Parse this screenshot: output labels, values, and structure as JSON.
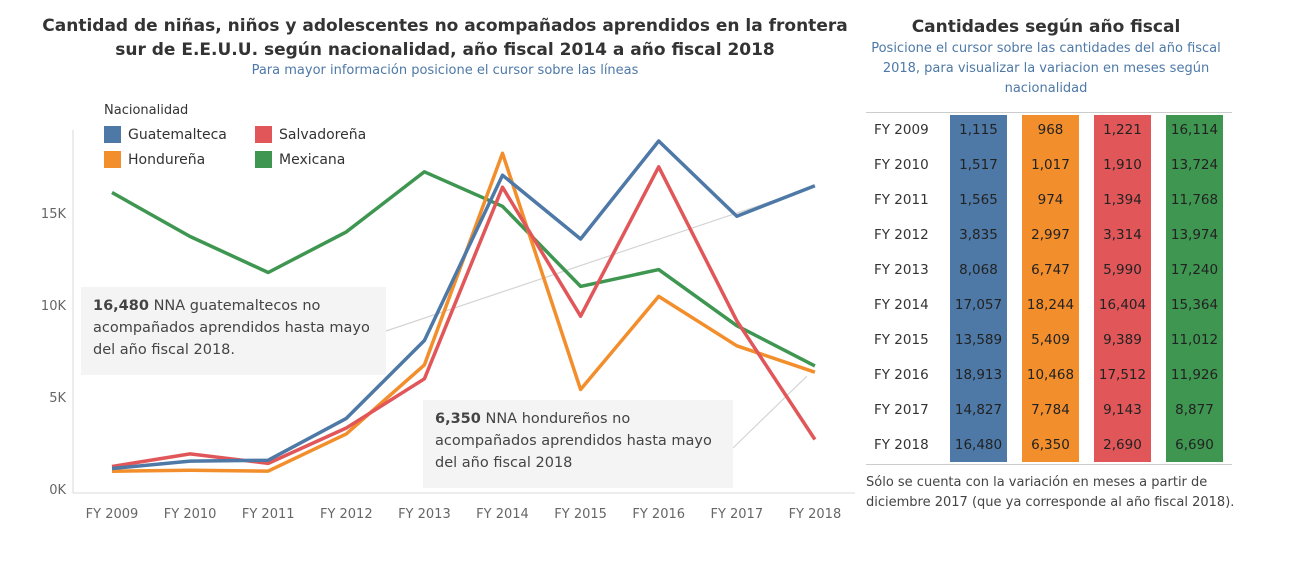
{
  "title": "Cantidad de niñas, niños y adolescentes no acompañados aprendidos en la frontera sur de E.E.U.U. según nacionalidad, año fiscal 2014 a año fiscal 2018",
  "subtitle": "Para mayor información posicione el cursor sobre las líneas",
  "legend_title": "Nacionalidad",
  "colors": {
    "Guatemalteca": "#4e79a7",
    "Salvadoreña": "#e15759",
    "Hondureña": "#f28e2b",
    "Mexicana": "#3e9651"
  },
  "chart_data": {
    "type": "line",
    "categories": [
      "FY 2009",
      "FY 2010",
      "FY 2011",
      "FY 2012",
      "FY 2013",
      "FY 2014",
      "FY 2015",
      "FY 2016",
      "FY 2017",
      "FY 2018"
    ],
    "y_ticks": [
      "0K",
      "5K",
      "10K",
      "15K"
    ],
    "ylim": [
      0,
      20000
    ],
    "grid": false,
    "legend_position": "top-left",
    "series": [
      {
        "name": "Guatemalteca",
        "values": [
          1115,
          1517,
          1565,
          3835,
          8068,
          17057,
          13589,
          18913,
          14827,
          16480
        ]
      },
      {
        "name": "Hondureña",
        "values": [
          968,
          1017,
          974,
          2997,
          6747,
          18244,
          5409,
          10468,
          7784,
          6350
        ]
      },
      {
        "name": "Salvadoreña",
        "values": [
          1221,
          1910,
          1394,
          3314,
          5990,
          16404,
          9389,
          17512,
          9143,
          2690
        ]
      },
      {
        "name": "Mexicana",
        "values": [
          16114,
          13724,
          11768,
          13974,
          17240,
          15364,
          11012,
          11926,
          8877,
          6690
        ]
      }
    ],
    "annotations": [
      {
        "value": "16,480",
        "text": "NNA guatemaltecos no acompañados aprendidos hasta mayo del año fiscal 2018."
      },
      {
        "value": "6,350",
        "text": "NNA hondureños no acompañados aprendidos hasta mayo del año fiscal 2018"
      }
    ]
  },
  "right_panel": {
    "title": "Cantidades según año fiscal",
    "subtitle": "Posicione el cursor sobre las cantidades del año fiscal 2018, para visualizar la variacion en meses según nacionalidad",
    "rows": [
      {
        "fy": "FY 2009",
        "values": [
          "1,115",
          "968",
          "1,221",
          "16,114"
        ]
      },
      {
        "fy": "FY 2010",
        "values": [
          "1,517",
          "1,017",
          "1,910",
          "13,724"
        ]
      },
      {
        "fy": "FY 2011",
        "values": [
          "1,565",
          "974",
          "1,394",
          "11,768"
        ]
      },
      {
        "fy": "FY 2012",
        "values": [
          "3,835",
          "2,997",
          "3,314",
          "13,974"
        ]
      },
      {
        "fy": "FY 2013",
        "values": [
          "8,068",
          "6,747",
          "5,990",
          "17,240"
        ]
      },
      {
        "fy": "FY 2014",
        "values": [
          "17,057",
          "18,244",
          "16,404",
          "15,364"
        ]
      },
      {
        "fy": "FY 2015",
        "values": [
          "13,589",
          "5,409",
          "9,389",
          "11,012"
        ]
      },
      {
        "fy": "FY 2016",
        "values": [
          "18,913",
          "10,468",
          "17,512",
          "11,926"
        ]
      },
      {
        "fy": "FY 2017",
        "values": [
          "14,827",
          "7,784",
          "9,143",
          "8,877"
        ]
      },
      {
        "fy": "FY 2018",
        "values": [
          "16,480",
          "6,350",
          "2,690",
          "6,690"
        ]
      }
    ],
    "footnote": "Sólo se cuenta con la variación en meses a partir de diciembre 2017 (que ya corresponde al año fiscal 2018)."
  }
}
